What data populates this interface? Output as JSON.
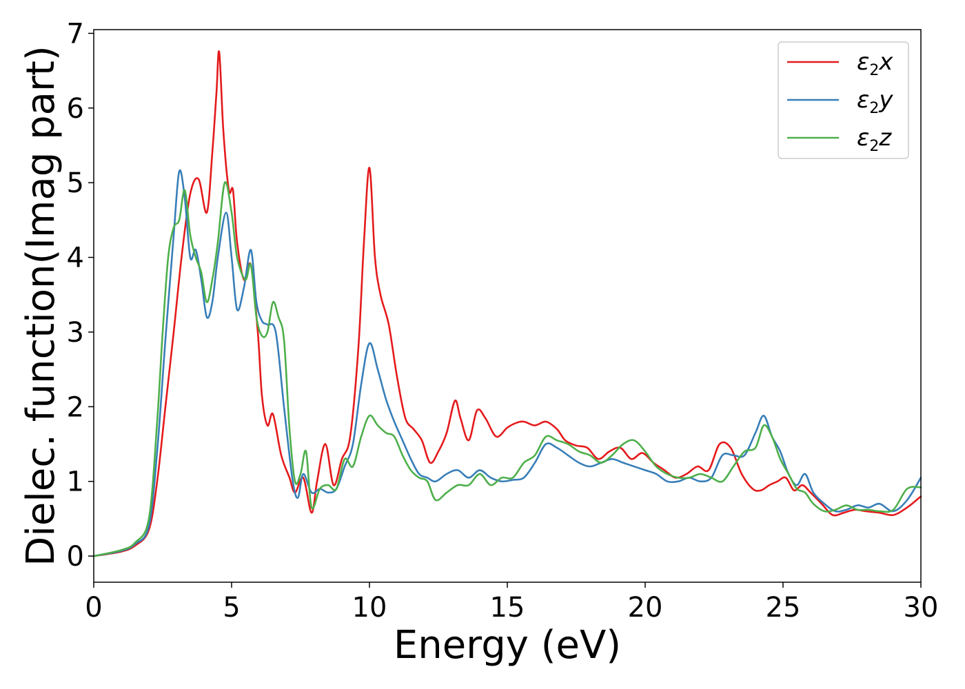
{
  "chart_data": {
    "type": "line",
    "xlabel": "Energy (eV)",
    "ylabel": "Dielec. function(Imag part)",
    "xlim": [
      0,
      30
    ],
    "ylim": [
      -0.35,
      7.05
    ],
    "xticks": [
      0,
      5,
      10,
      15,
      20,
      25,
      30
    ],
    "xtick_labels": [
      "0",
      "5",
      "10",
      "15",
      "20",
      "25",
      "30"
    ],
    "yticks": [
      0,
      1,
      2,
      3,
      4,
      5,
      6,
      7
    ],
    "ytick_labels": [
      "0",
      "1",
      "2",
      "3",
      "4",
      "5",
      "6",
      "7"
    ],
    "grid": false,
    "legend_position": "top-right",
    "series": [
      {
        "name": "ε2x",
        "legend_base": "ε",
        "legend_sub": "2",
        "legend_var": "x",
        "color": "#e41a1c",
        "x": [
          0,
          1,
          1.5,
          2,
          2.3,
          2.6,
          2.9,
          3.2,
          3.5,
          3.8,
          4.1,
          4.3,
          4.45,
          4.55,
          4.7,
          4.9,
          5.05,
          5.2,
          5.45,
          5.7,
          5.95,
          6.1,
          6.3,
          6.5,
          6.8,
          7.1,
          7.3,
          7.6,
          7.9,
          8.1,
          8.4,
          8.7,
          9,
          9.3,
          9.6,
          9.8,
          10,
          10.2,
          10.4,
          10.7,
          11,
          11.3,
          11.6,
          11.9,
          12.2,
          12.5,
          12.8,
          13.1,
          13.3,
          13.6,
          13.9,
          14.2,
          14.6,
          15,
          15.3,
          15.6,
          16,
          16.4,
          16.8,
          17.1,
          17.5,
          17.9,
          18.3,
          18.7,
          19.1,
          19.5,
          19.9,
          20.3,
          20.7,
          21.1,
          21.5,
          21.9,
          22.3,
          22.7,
          23.1,
          23.5,
          23.9,
          24.2,
          24.5,
          24.8,
          25.1,
          25.4,
          25.7,
          26,
          26.4,
          26.8,
          27.2,
          27.6,
          28,
          28.5,
          29,
          29.5,
          30
        ],
        "y": [
          0,
          0.06,
          0.14,
          0.35,
          1.0,
          2.0,
          3.0,
          4.05,
          4.85,
          5.05,
          4.6,
          5.4,
          6.2,
          6.75,
          5.7,
          4.9,
          4.9,
          4.2,
          3.7,
          3.9,
          3.0,
          2.15,
          1.75,
          1.9,
          1.35,
          1.05,
          0.85,
          1.05,
          0.58,
          1.0,
          1.5,
          0.95,
          1.3,
          1.6,
          2.8,
          4.2,
          5.2,
          4.0,
          3.5,
          3.1,
          2.4,
          1.85,
          1.7,
          1.55,
          1.25,
          1.4,
          1.65,
          2.08,
          1.85,
          1.55,
          1.95,
          1.85,
          1.6,
          1.72,
          1.78,
          1.8,
          1.75,
          1.8,
          1.7,
          1.55,
          1.48,
          1.45,
          1.3,
          1.4,
          1.45,
          1.3,
          1.38,
          1.25,
          1.15,
          1.05,
          1.1,
          1.2,
          1.15,
          1.5,
          1.45,
          1.1,
          0.9,
          0.88,
          0.95,
          1.0,
          1.05,
          0.88,
          0.95,
          0.85,
          0.7,
          0.55,
          0.58,
          0.62,
          0.6,
          0.58,
          0.55,
          0.65,
          0.8
        ]
      },
      {
        "name": "ε2y",
        "legend_base": "ε",
        "legend_sub": "2",
        "legend_var": "y",
        "color": "#377eb8",
        "x": [
          0,
          1,
          1.5,
          2,
          2.3,
          2.6,
          2.9,
          3.1,
          3.3,
          3.5,
          3.7,
          3.9,
          4.1,
          4.3,
          4.5,
          4.8,
          5,
          5.2,
          5.45,
          5.7,
          5.9,
          6.1,
          6.3,
          6.6,
          6.9,
          7.2,
          7.4,
          7.6,
          7.9,
          8.2,
          8.5,
          8.8,
          9.1,
          9.4,
          9.7,
          10,
          10.3,
          10.6,
          10.9,
          11.2,
          11.5,
          11.8,
          12.1,
          12.4,
          12.8,
          13.2,
          13.6,
          14,
          14.4,
          14.8,
          15.2,
          15.6,
          16,
          16.4,
          16.8,
          17.2,
          17.6,
          18,
          18.4,
          18.8,
          19.2,
          19.6,
          20,
          20.4,
          20.8,
          21.2,
          21.6,
          22,
          22.4,
          22.8,
          23.2,
          23.6,
          24,
          24.3,
          24.6,
          24.9,
          25.2,
          25.5,
          25.8,
          26.1,
          26.5,
          26.9,
          27.3,
          27.7,
          28.1,
          28.5,
          29,
          29.5,
          30
        ],
        "y": [
          0,
          0.07,
          0.16,
          0.4,
          1.4,
          2.9,
          4.3,
          5.15,
          4.8,
          4.0,
          4.1,
          3.7,
          3.2,
          3.4,
          4.0,
          4.6,
          4.0,
          3.3,
          3.6,
          4.1,
          3.4,
          3.15,
          3.1,
          3.0,
          2.0,
          1.05,
          0.78,
          1.1,
          0.85,
          0.9,
          0.85,
          0.9,
          1.2,
          1.5,
          2.3,
          2.85,
          2.5,
          2.1,
          1.8,
          1.55,
          1.3,
          1.1,
          1.05,
          1.0,
          1.1,
          1.15,
          1.05,
          1.15,
          1.05,
          1.0,
          1.02,
          1.05,
          1.25,
          1.5,
          1.45,
          1.35,
          1.25,
          1.2,
          1.25,
          1.3,
          1.25,
          1.2,
          1.15,
          1.1,
          1.0,
          1.0,
          1.05,
          1.0,
          1.05,
          1.35,
          1.35,
          1.35,
          1.65,
          1.88,
          1.6,
          1.4,
          1.1,
          0.95,
          1.1,
          0.85,
          0.7,
          0.6,
          0.62,
          0.68,
          0.65,
          0.7,
          0.6,
          0.75,
          1.05
        ]
      },
      {
        "name": "ε2z",
        "legend_base": "ε",
        "legend_sub": "2",
        "legend_var": "z",
        "color": "#4daf4a",
        "x": [
          0,
          1,
          1.5,
          2,
          2.3,
          2.5,
          2.7,
          2.9,
          3.1,
          3.3,
          3.5,
          3.7,
          3.9,
          4.1,
          4.3,
          4.5,
          4.75,
          5,
          5.2,
          5.5,
          5.7,
          5.9,
          6.1,
          6.3,
          6.5,
          6.7,
          6.9,
          7.1,
          7.3,
          7.5,
          7.7,
          7.9,
          8.2,
          8.5,
          8.8,
          9.1,
          9.4,
          9.7,
          10,
          10.3,
          10.6,
          10.9,
          11.2,
          11.5,
          11.8,
          12.1,
          12.4,
          12.8,
          13.2,
          13.6,
          14,
          14.4,
          14.8,
          15.2,
          15.6,
          16,
          16.4,
          16.8,
          17.2,
          17.6,
          18,
          18.4,
          18.8,
          19.2,
          19.6,
          20,
          20.4,
          20.8,
          21.2,
          21.6,
          22,
          22.4,
          22.8,
          23.2,
          23.6,
          24,
          24.3,
          24.6,
          24.9,
          25.2,
          25.5,
          25.8,
          26.1,
          26.5,
          26.9,
          27.3,
          27.7,
          28.1,
          28.5,
          29,
          29.5,
          30
        ],
        "y": [
          0,
          0.08,
          0.18,
          0.5,
          1.8,
          3.0,
          4.0,
          4.4,
          4.5,
          4.9,
          4.3,
          4.0,
          3.8,
          3.4,
          3.7,
          4.2,
          5.0,
          4.6,
          4.0,
          3.7,
          3.9,
          3.2,
          2.95,
          3.0,
          3.4,
          3.2,
          2.9,
          1.7,
          1.0,
          1.1,
          1.4,
          0.65,
          0.9,
          0.95,
          0.9,
          1.3,
          1.2,
          1.6,
          1.88,
          1.75,
          1.65,
          1.6,
          1.35,
          1.15,
          1.05,
          1.0,
          0.75,
          0.85,
          0.95,
          0.95,
          1.1,
          0.95,
          1.05,
          1.05,
          1.25,
          1.35,
          1.6,
          1.55,
          1.5,
          1.4,
          1.35,
          1.25,
          1.35,
          1.5,
          1.55,
          1.4,
          1.2,
          1.1,
          1.05,
          1.05,
          1.1,
          1.05,
          1.0,
          1.2,
          1.4,
          1.45,
          1.75,
          1.6,
          1.3,
          1.1,
          0.9,
          0.85,
          0.7,
          0.6,
          0.62,
          0.68,
          0.62,
          0.62,
          0.6,
          0.62,
          0.9,
          0.92
        ]
      }
    ]
  }
}
